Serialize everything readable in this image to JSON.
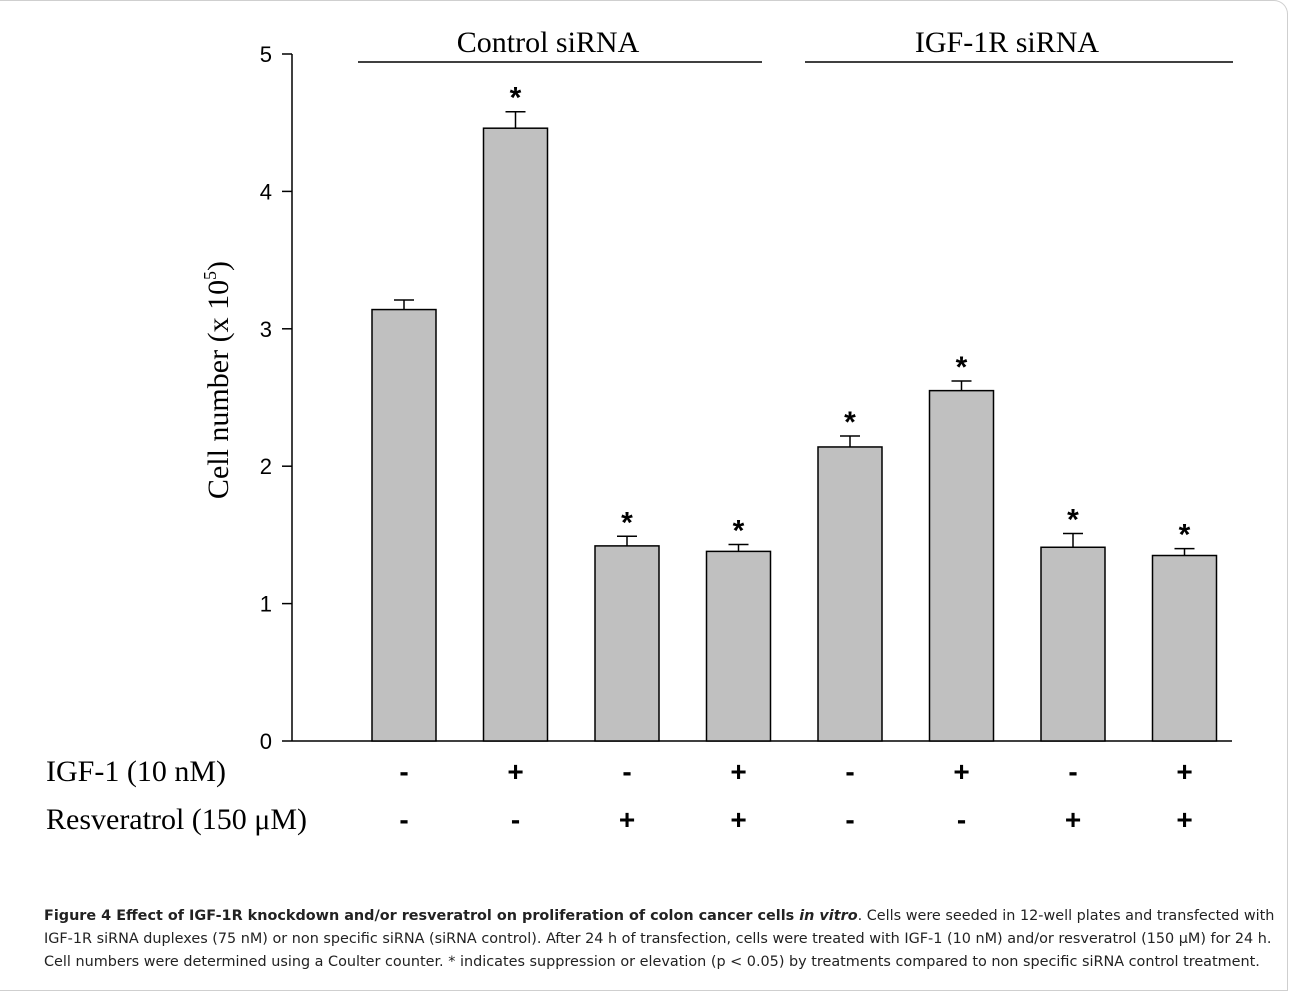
{
  "chart_data": {
    "type": "bar",
    "ylabel": "Cell number (x 10",
    "ylabel_superscript": "5",
    "ylabel_close": ")",
    "ylim": [
      0,
      5
    ],
    "yticks": [
      "0",
      "1",
      "2",
      "3",
      "4",
      "5"
    ],
    "grid": false,
    "bar_color": "#c0c0c0",
    "values": [
      3.14,
      4.46,
      1.42,
      1.38,
      2.14,
      2.55,
      1.41,
      1.35
    ],
    "errors": [
      0.07,
      0.12,
      0.07,
      0.05,
      0.08,
      0.07,
      0.1,
      0.05
    ],
    "significance": [
      "",
      "*",
      "*",
      "*",
      "*",
      "*",
      "*",
      "*"
    ],
    "groups": [
      {
        "label": "Control siRNA"
      },
      {
        "label": "IGF-1R siRNA"
      }
    ],
    "treatment_rows": [
      {
        "label": "IGF-1 (10 nM)",
        "values": [
          "-",
          "+",
          "-",
          "+",
          "-",
          "+",
          "-",
          "+"
        ]
      },
      {
        "label": "Resveratrol (150 μM)",
        "values": [
          "-",
          "-",
          "+",
          "+",
          "-",
          "-",
          "+",
          "+"
        ]
      }
    ]
  },
  "caption": {
    "bold_prefix": "Figure 4 Effect of IGF-1R knockdown and/or resveratrol on proliferation of colon cancer cells ",
    "bold_italic": "in vitro",
    "text": ". Cells were seeded in 12-well plates and transfected with IGF-1R siRNA duplexes (75 nM) or non specific siRNA (siRNA control). After 24 h of transfection, cells were treated with IGF-1 (10 nM) and/or resveratrol (150 μM) for 24 h. Cell numbers were determined using a Coulter counter. * indicates suppression or elevation (p < 0.05) by treatments compared to non specific siRNA control treatment."
  }
}
